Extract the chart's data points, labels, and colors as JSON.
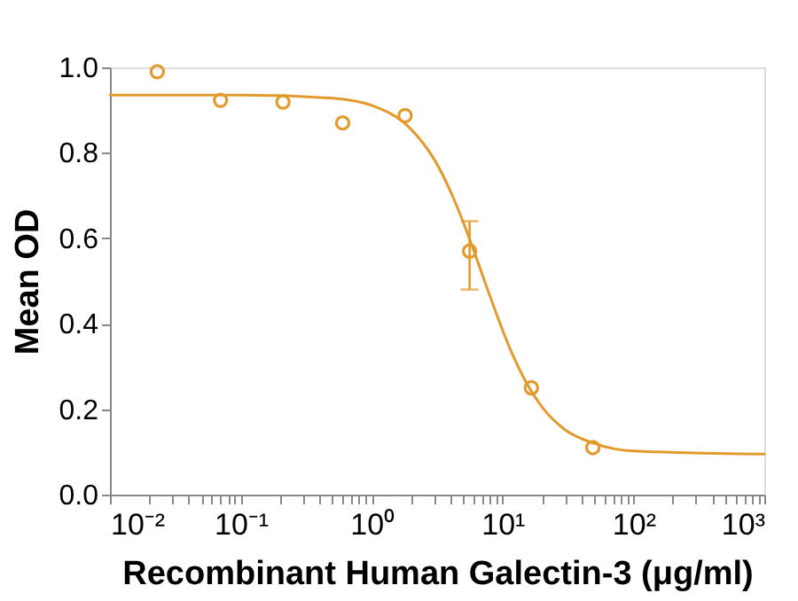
{
  "chart_data": {
    "type": "scatter",
    "xlabel": "Recombinant Human Galectin-3 (μg/ml)",
    "ylabel": "Mean OD",
    "log": "x",
    "grid": false,
    "xlim": [
      0.01,
      1000
    ],
    "xticks": [
      {
        "value": 0.01,
        "label": "10⁻²"
      },
      {
        "value": 0.1,
        "label": "10⁻¹"
      },
      {
        "value": 1,
        "label": "10⁰"
      },
      {
        "value": 10,
        "label": "10¹"
      },
      {
        "value": 100,
        "label": "10²"
      },
      {
        "value": 1000,
        "label": "10³"
      },
      {
        "value": 0.02,
        "label": null
      },
      {
        "value": 0.03,
        "label": null
      },
      {
        "value": 0.04,
        "label": null
      },
      {
        "value": 0.05,
        "label": null
      },
      {
        "value": 0.06,
        "label": null
      },
      {
        "value": 0.07,
        "label": null
      },
      {
        "value": 0.08,
        "label": null
      },
      {
        "value": 0.09,
        "label": null
      },
      {
        "value": 0.2,
        "label": null
      },
      {
        "value": 0.3,
        "label": null
      },
      {
        "value": 0.4,
        "label": null
      },
      {
        "value": 0.5,
        "label": null
      },
      {
        "value": 0.6,
        "label": null
      },
      {
        "value": 0.7,
        "label": null
      },
      {
        "value": 0.8,
        "label": null
      },
      {
        "value": 0.9,
        "label": null
      },
      {
        "value": 2,
        "label": null
      },
      {
        "value": 3,
        "label": null
      },
      {
        "value": 4,
        "label": null
      },
      {
        "value": 5,
        "label": null
      },
      {
        "value": 6,
        "label": null
      },
      {
        "value": 7,
        "label": null
      },
      {
        "value": 8,
        "label": null
      },
      {
        "value": 9,
        "label": null
      },
      {
        "value": 20,
        "label": null
      },
      {
        "value": 30,
        "label": null
      },
      {
        "value": 40,
        "label": null
      },
      {
        "value": 50,
        "label": null
      },
      {
        "value": 60,
        "label": null
      },
      {
        "value": 70,
        "label": null
      },
      {
        "value": 80,
        "label": null
      },
      {
        "value": 90,
        "label": null
      },
      {
        "value": 200,
        "label": null
      },
      {
        "value": 300,
        "label": null
      },
      {
        "value": 400,
        "label": null
      },
      {
        "value": 500,
        "label": null
      },
      {
        "value": 600,
        "label": null
      },
      {
        "value": 700,
        "label": null
      },
      {
        "value": 800,
        "label": null
      },
      {
        "value": 900,
        "label": null
      }
    ],
    "ylim": [
      0,
      1.0
    ],
    "yticks": [
      {
        "value": 0,
        "label": "0.0"
      },
      0.2,
      0.4,
      0.6,
      0.8,
      {
        "value": 1.0,
        "label": "1.0"
      }
    ],
    "series": [
      {
        "color": "#e39a2d",
        "marker": "circle",
        "x": [
          0.023,
          0.07,
          0.21,
          0.6,
          1.8,
          5.6,
          16.6,
          49
        ],
        "values": [
          0.99,
          0.923,
          0.919,
          0.87,
          0.887,
          0.57,
          0.25,
          0.11
        ],
        "errors": [
          null,
          null,
          null,
          null,
          null,
          [
            0.48,
            0.64
          ],
          null,
          null
        ]
      },
      {
        "type": "line",
        "color": "#e39a2d",
        "marker": "none",
        "line_style": "solid",
        "x": [
          0.01,
          0.1,
          0.5,
          1,
          2,
          3,
          4,
          5,
          6,
          7,
          8,
          10,
          12,
          15,
          20,
          30,
          50,
          100,
          1000
        ],
        "values": [
          0.935,
          0.935,
          0.928,
          0.911,
          0.855,
          0.785,
          0.71,
          0.638,
          0.573,
          0.515,
          0.465,
          0.385,
          0.326,
          0.265,
          0.205,
          0.152,
          0.12,
          0.102,
          0.095
        ]
      }
    ]
  }
}
